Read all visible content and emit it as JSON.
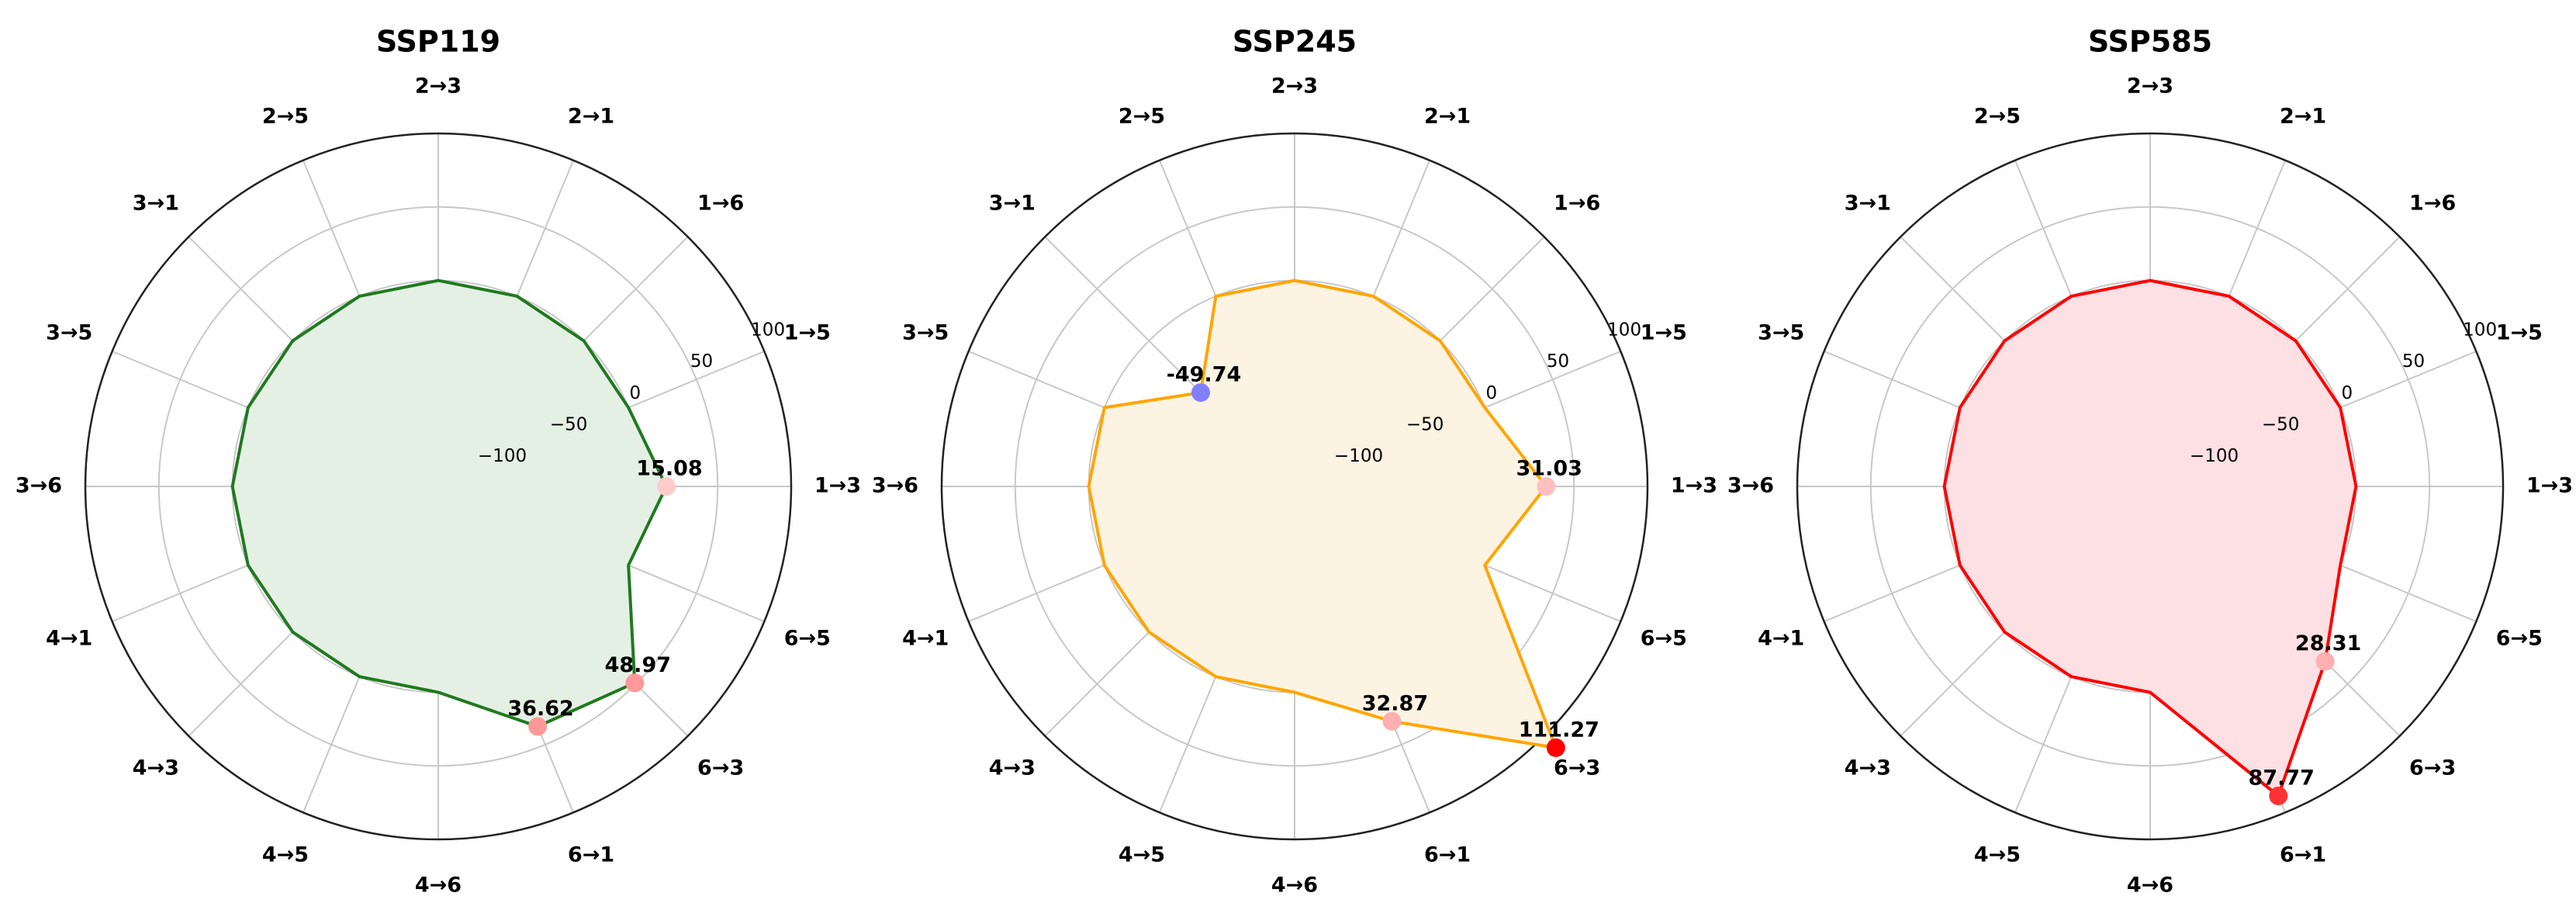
{
  "chart_data": [
    {
      "type": "radar",
      "title": "SSP119",
      "categories": [
        "1→3",
        "1→5",
        "1→6",
        "2→1",
        "2→3",
        "2→5",
        "3→1",
        "3→5",
        "3→6",
        "4→1",
        "4→3",
        "4→5",
        "4→6",
        "6→1",
        "6→3",
        "6→5"
      ],
      "values": [
        15.08,
        0,
        0,
        0,
        0,
        0,
        0,
        0,
        0,
        0,
        0,
        0,
        0,
        36.62,
        48.97,
        0
      ],
      "radial_ticks": [
        "−100",
        "−50",
        "0",
        "50",
        "100"
      ],
      "rlim": [
        -140,
        100
      ],
      "grid": true,
      "color": "#1f7a1f",
      "fill": "#e5f0e5",
      "highlights": [
        {
          "index": 0,
          "label": "15.08",
          "color": "#ffcccc"
        },
        {
          "index": 13,
          "label": "36.62",
          "color": "#ff9999"
        },
        {
          "index": 14,
          "label": "48.97",
          "color": "#ff9999"
        }
      ]
    },
    {
      "type": "radar",
      "title": "SSP245",
      "categories": [
        "1→3",
        "1→5",
        "1→6",
        "2→1",
        "2→3",
        "2→5",
        "3→1",
        "3→5",
        "3→6",
        "4→1",
        "4→3",
        "4→5",
        "4→6",
        "6→1",
        "6→3",
        "6→5"
      ],
      "values": [
        31.03,
        0,
        0,
        0,
        0,
        0,
        -49.74,
        0,
        0,
        0,
        0,
        0,
        0,
        32.87,
        111.27,
        0
      ],
      "radial_ticks": [
        "−100",
        "−50",
        "0",
        "50",
        "100"
      ],
      "rlim": [
        -140,
        100
      ],
      "grid": true,
      "color": "#ffa500",
      "fill": "#fdf3e3",
      "highlights": [
        {
          "index": 0,
          "label": "31.03",
          "color": "#ffc0c0"
        },
        {
          "index": 6,
          "label": "-49.74",
          "color": "#8080ff"
        },
        {
          "index": 13,
          "label": "32.87",
          "color": "#ffb0b0"
        },
        {
          "index": 14,
          "label": "111.27",
          "color": "#ff0000"
        }
      ]
    },
    {
      "type": "radar",
      "title": "SSP585",
      "categories": [
        "1→3",
        "1→5",
        "1→6",
        "2→1",
        "2→3",
        "2→5",
        "3→1",
        "3→5",
        "3→6",
        "4→1",
        "4→3",
        "4→5",
        "4→6",
        "6→1",
        "6→3",
        "6→5"
      ],
      "values": [
        0,
        0,
        0,
        0,
        0,
        0,
        0,
        0,
        0,
        0,
        0,
        0,
        0,
        87.77,
        28.31,
        0
      ],
      "radial_ticks": [
        "−100",
        "−50",
        "0",
        "50",
        "100"
      ],
      "rlim": [
        -140,
        100
      ],
      "grid": true,
      "color": "#ff0000",
      "fill": "#fde0e3",
      "highlights": [
        {
          "index": 13,
          "label": "87.77",
          "color": "#ff3333"
        },
        {
          "index": 14,
          "label": "28.31",
          "color": "#ffb0b0"
        }
      ]
    }
  ]
}
